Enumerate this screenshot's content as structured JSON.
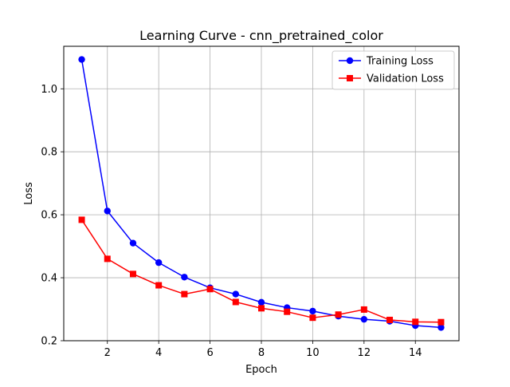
{
  "chart_data": {
    "type": "line",
    "title": "Learning Curve - cnn_pretrained_color",
    "xlabel": "Epoch",
    "ylabel": "Loss",
    "xlim": [
      0.3,
      15.7
    ],
    "ylim": [
      0.2,
      1.135
    ],
    "xticks": [
      2,
      4,
      6,
      8,
      10,
      12,
      14
    ],
    "yticks": [
      0.2,
      0.4,
      0.6,
      0.8,
      1.0
    ],
    "ytick_labels": [
      "0.2",
      "0.4",
      "0.6",
      "0.8",
      "1.0"
    ],
    "grid": true,
    "legend_position": "upper right",
    "x": [
      1,
      2,
      3,
      4,
      5,
      6,
      7,
      8,
      9,
      10,
      11,
      12,
      13,
      14,
      15
    ],
    "series": [
      {
        "name": "Training Loss",
        "color": "#0000ff",
        "marker": "circle",
        "values": [
          1.093,
          0.612,
          0.51,
          0.448,
          0.402,
          0.368,
          0.348,
          0.322,
          0.305,
          0.294,
          0.278,
          0.268,
          0.262,
          0.248,
          0.242
        ]
      },
      {
        "name": "Validation Loss",
        "color": "#ff0000",
        "marker": "square",
        "values": [
          0.584,
          0.46,
          0.412,
          0.376,
          0.348,
          0.364,
          0.323,
          0.303,
          0.292,
          0.273,
          0.283,
          0.299,
          0.266,
          0.26,
          0.259
        ]
      }
    ]
  }
}
